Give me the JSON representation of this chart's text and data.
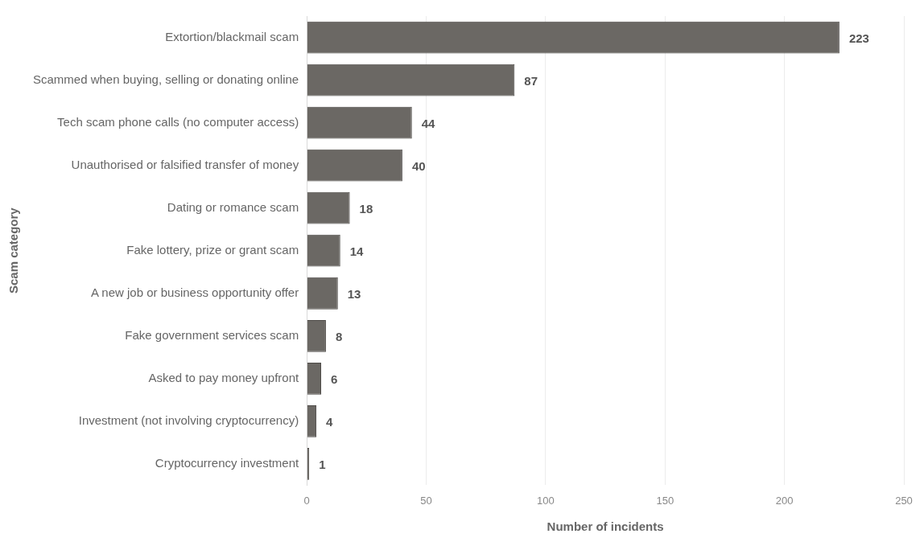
{
  "chart_data": {
    "type": "bar",
    "orientation": "horizontal",
    "xlabel": "Number of incidents",
    "ylabel": "Scam category",
    "categories": [
      "Extortion/blackmail scam",
      "Scammed when buying, selling or donating online",
      "Tech scam phone calls (no computer access)",
      "Unauthorised or falsified transfer of money",
      "Dating or romance scam",
      "Fake lottery, prize or grant scam",
      "A new job or business opportunity offer",
      "Fake government services scam",
      "Asked to pay money upfront",
      "Investment (not involving cryptocurrency)",
      "Cryptocurrency investment"
    ],
    "values": [
      223,
      87,
      44,
      40,
      18,
      14,
      13,
      8,
      6,
      4,
      1
    ],
    "color": "#6b6864",
    "xlim": [
      0,
      250
    ],
    "xticks": [
      0,
      50,
      100,
      150,
      200,
      250
    ],
    "grid": "x",
    "data_labels": true
  }
}
